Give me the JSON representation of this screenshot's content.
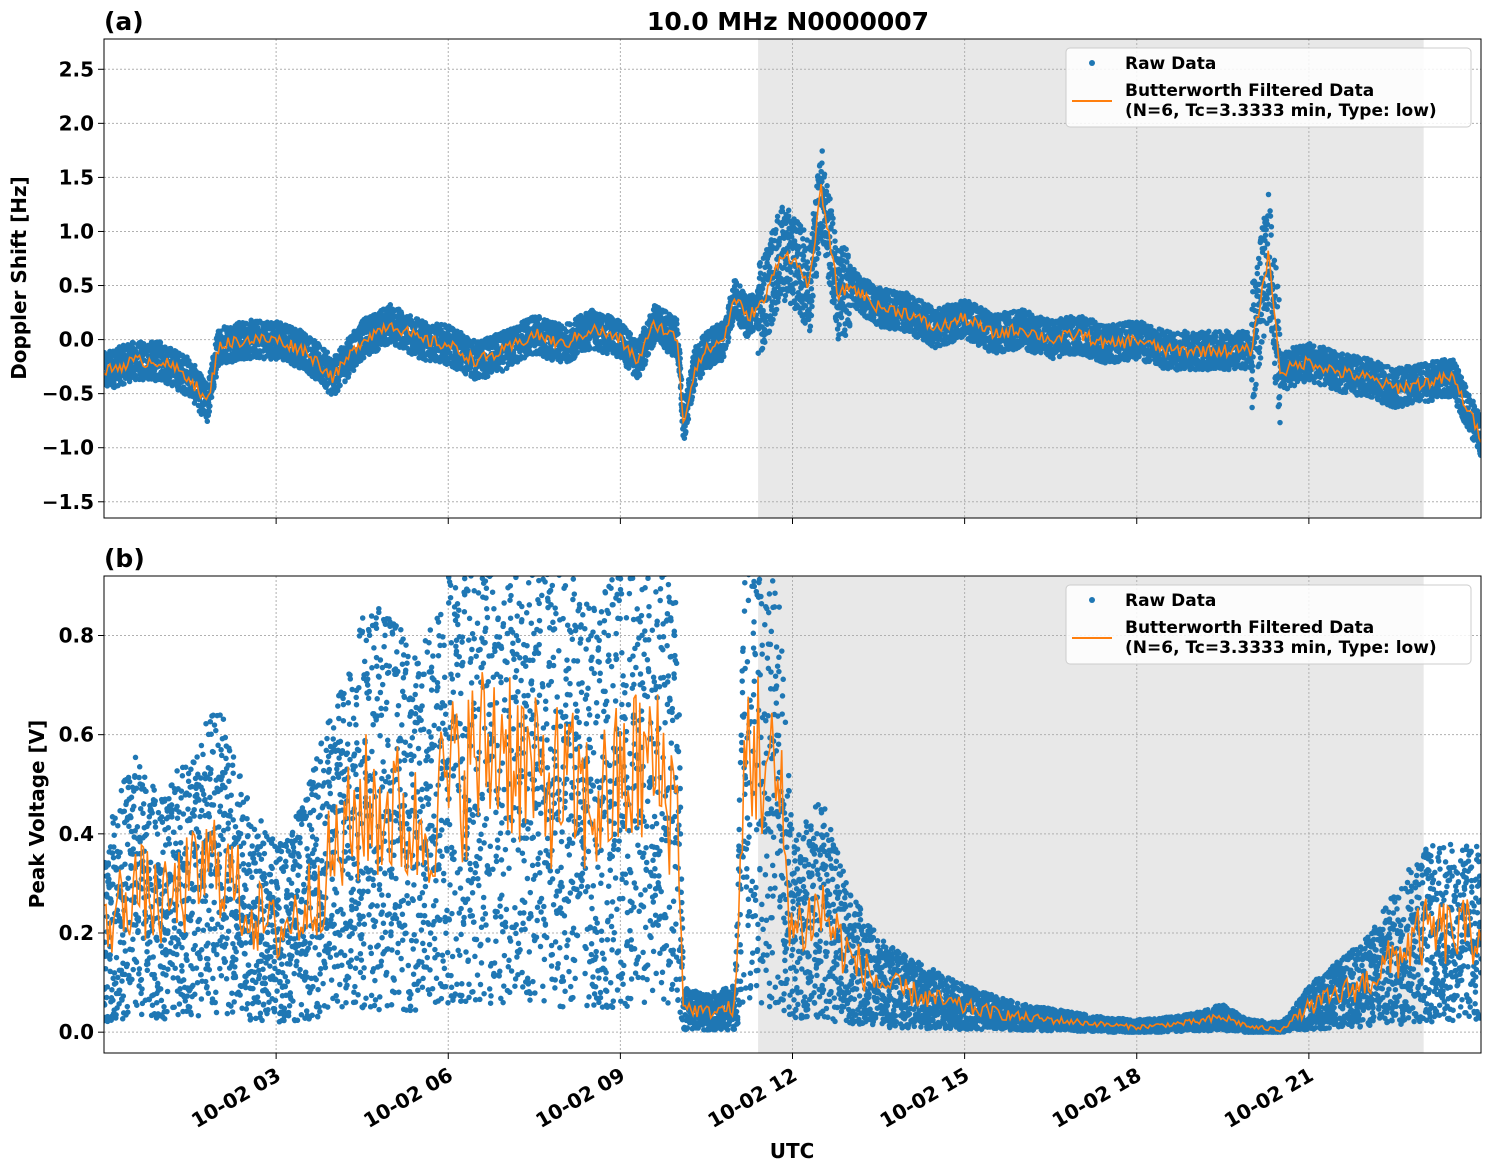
{
  "figure": {
    "title": "10.0 MHz N0000007",
    "xlabel": "UTC"
  },
  "colors": {
    "raw": "#1f77b4",
    "filtered": "#ff7f0e",
    "shade": "#e8e8e8",
    "grid": "#b0b0b0"
  },
  "chart_data": [
    {
      "type": "scatter",
      "panel_label": "(a)",
      "title": "10.0 MHz N0000007",
      "ylabel": "Doppler Shift [Hz]",
      "xlabel": "",
      "x_range_hours": [
        0,
        24
      ],
      "ylim": [
        -1.65,
        2.78
      ],
      "yticks": [
        -1.5,
        -1.0,
        -0.5,
        0.0,
        0.5,
        1.0,
        1.5,
        2.0,
        2.5
      ],
      "ytick_labels": [
        "−1.5",
        "−1.0",
        "−0.5",
        "0.0",
        "0.5",
        "1.0",
        "1.5",
        "2.0",
        "2.5"
      ],
      "grid": true,
      "legend_position": "top-right",
      "shaded_region_hours": [
        11.4,
        23.0
      ],
      "series": [
        {
          "name": "Raw Data",
          "kind": "points",
          "x": [
            0,
            0.5,
            1,
            1.5,
            1.8,
            2,
            2.5,
            3,
            3.5,
            4,
            4.5,
            5,
            5.5,
            6,
            6.5,
            7,
            7.5,
            8,
            8.5,
            9,
            9.3,
            9.6,
            10,
            10.1,
            10.3,
            10.5,
            10.8,
            11,
            11.2,
            11.5,
            11.8,
            12,
            12.3,
            12.5,
            12.8,
            13,
            13.5,
            14,
            14.5,
            15,
            15.5,
            16,
            16.5,
            17,
            17.5,
            18,
            18.5,
            19,
            19.5,
            20,
            20.3,
            20.5,
            21,
            21.5,
            22,
            22.5,
            23,
            23.5,
            24
          ],
          "y": [
            -0.3,
            -0.2,
            -0.2,
            -0.35,
            -0.6,
            -0.05,
            0.0,
            0.0,
            -0.1,
            -0.35,
            0.0,
            0.15,
            0.0,
            -0.05,
            -0.2,
            -0.1,
            0.05,
            -0.05,
            0.1,
            0.0,
            -0.2,
            0.15,
            0.0,
            -0.8,
            -0.25,
            -0.1,
            0.0,
            0.4,
            0.2,
            0.35,
            0.8,
            0.75,
            0.5,
            1.4,
            0.4,
            0.5,
            0.3,
            0.25,
            0.1,
            0.2,
            0.05,
            0.1,
            0.0,
            0.05,
            -0.05,
            0.0,
            -0.1,
            -0.1,
            -0.1,
            -0.1,
            0.8,
            -0.3,
            -0.2,
            -0.3,
            -0.35,
            -0.45,
            -0.4,
            -0.35,
            -0.9
          ]
        },
        {
          "name": "Butterworth Filtered Data\n(N=6, Tc=3.3333 min, Type: low)",
          "kind": "line",
          "x": [
            0,
            0.5,
            1,
            1.5,
            1.8,
            2,
            2.5,
            3,
            3.5,
            4,
            4.5,
            5,
            5.5,
            6,
            6.5,
            7,
            7.5,
            8,
            8.5,
            9,
            9.3,
            9.6,
            10,
            10.1,
            10.3,
            10.5,
            10.8,
            11,
            11.2,
            11.5,
            11.8,
            12,
            12.3,
            12.5,
            12.8,
            13,
            13.5,
            14,
            14.5,
            15,
            15.5,
            16,
            16.5,
            17,
            17.5,
            18,
            18.5,
            19,
            19.5,
            20,
            20.3,
            20.5,
            21,
            21.5,
            22,
            22.5,
            23,
            23.5,
            24
          ],
          "y": [
            -0.3,
            -0.2,
            -0.2,
            -0.35,
            -0.6,
            -0.05,
            0.0,
            0.0,
            -0.1,
            -0.35,
            0.0,
            0.15,
            0.0,
            -0.05,
            -0.2,
            -0.1,
            0.05,
            -0.05,
            0.1,
            0.0,
            -0.2,
            0.15,
            0.0,
            -0.8,
            -0.25,
            -0.1,
            0.0,
            0.4,
            0.2,
            0.35,
            0.8,
            0.75,
            0.5,
            1.4,
            0.4,
            0.5,
            0.3,
            0.25,
            0.1,
            0.2,
            0.05,
            0.1,
            0.0,
            0.05,
            -0.05,
            0.0,
            -0.1,
            -0.1,
            -0.1,
            -0.1,
            0.8,
            -0.3,
            -0.2,
            -0.3,
            -0.35,
            -0.45,
            -0.4,
            -0.35,
            -0.9
          ]
        }
      ]
    },
    {
      "type": "scatter",
      "panel_label": "(b)",
      "ylabel": "Peak Voltage [V]",
      "xlabel": "UTC",
      "x_range_hours": [
        0,
        24
      ],
      "ylim": [
        -0.042,
        0.92
      ],
      "yticks": [
        0.0,
        0.2,
        0.4,
        0.6,
        0.8
      ],
      "ytick_labels": [
        "0.0",
        "0.2",
        "0.4",
        "0.6",
        "0.8"
      ],
      "xticks_hours": [
        3,
        6,
        9,
        12,
        15,
        18,
        21
      ],
      "xtick_labels": [
        "10-02 03",
        "10-02 06",
        "10-02 09",
        "10-02 12",
        "10-02 15",
        "10-02 18",
        "10-02 21"
      ],
      "grid": true,
      "legend_position": "top-right",
      "shaded_region_hours": [
        11.4,
        23.0
      ],
      "series": [
        {
          "name": "Raw Data",
          "kind": "points",
          "x": [
            0,
            0.5,
            1,
            1.5,
            2,
            2.5,
            3,
            3.5,
            4,
            4.5,
            5,
            5.5,
            6,
            6.5,
            7,
            7.5,
            8,
            8.5,
            9,
            9.5,
            10,
            10.1,
            10.5,
            11,
            11.2,
            11.5,
            11.8,
            12,
            12.5,
            13,
            13.5,
            14,
            15,
            16,
            17,
            18,
            19,
            19.5,
            20,
            20.5,
            21,
            22,
            23,
            24
          ],
          "y": [
            0.2,
            0.3,
            0.25,
            0.3,
            0.35,
            0.25,
            0.2,
            0.25,
            0.35,
            0.45,
            0.45,
            0.4,
            0.5,
            0.55,
            0.6,
            0.5,
            0.5,
            0.45,
            0.5,
            0.55,
            0.45,
            0.05,
            0.04,
            0.05,
            0.6,
            0.55,
            0.45,
            0.2,
            0.25,
            0.15,
            0.1,
            0.08,
            0.05,
            0.03,
            0.02,
            0.01,
            0.02,
            0.03,
            0.01,
            0.005,
            0.05,
            0.1,
            0.2,
            0.2
          ]
        },
        {
          "name": "Butterworth Filtered Data\n(N=6, Tc=3.3333 min, Type: low)",
          "kind": "line",
          "x": [
            0,
            0.5,
            1,
            1.5,
            2,
            2.5,
            3,
            3.5,
            4,
            4.5,
            5,
            5.5,
            6,
            6.5,
            7,
            7.5,
            8,
            8.5,
            9,
            9.5,
            10,
            10.1,
            10.5,
            11,
            11.2,
            11.5,
            11.8,
            12,
            12.5,
            13,
            13.5,
            14,
            15,
            16,
            17,
            18,
            19,
            19.5,
            20,
            20.5,
            21,
            22,
            23,
            24
          ],
          "y": [
            0.2,
            0.3,
            0.25,
            0.3,
            0.35,
            0.25,
            0.2,
            0.25,
            0.35,
            0.45,
            0.45,
            0.4,
            0.5,
            0.55,
            0.6,
            0.5,
            0.5,
            0.45,
            0.5,
            0.55,
            0.45,
            0.05,
            0.04,
            0.05,
            0.6,
            0.55,
            0.45,
            0.2,
            0.25,
            0.15,
            0.1,
            0.08,
            0.05,
            0.03,
            0.02,
            0.01,
            0.02,
            0.03,
            0.01,
            0.005,
            0.05,
            0.1,
            0.2,
            0.2
          ]
        }
      ]
    }
  ]
}
